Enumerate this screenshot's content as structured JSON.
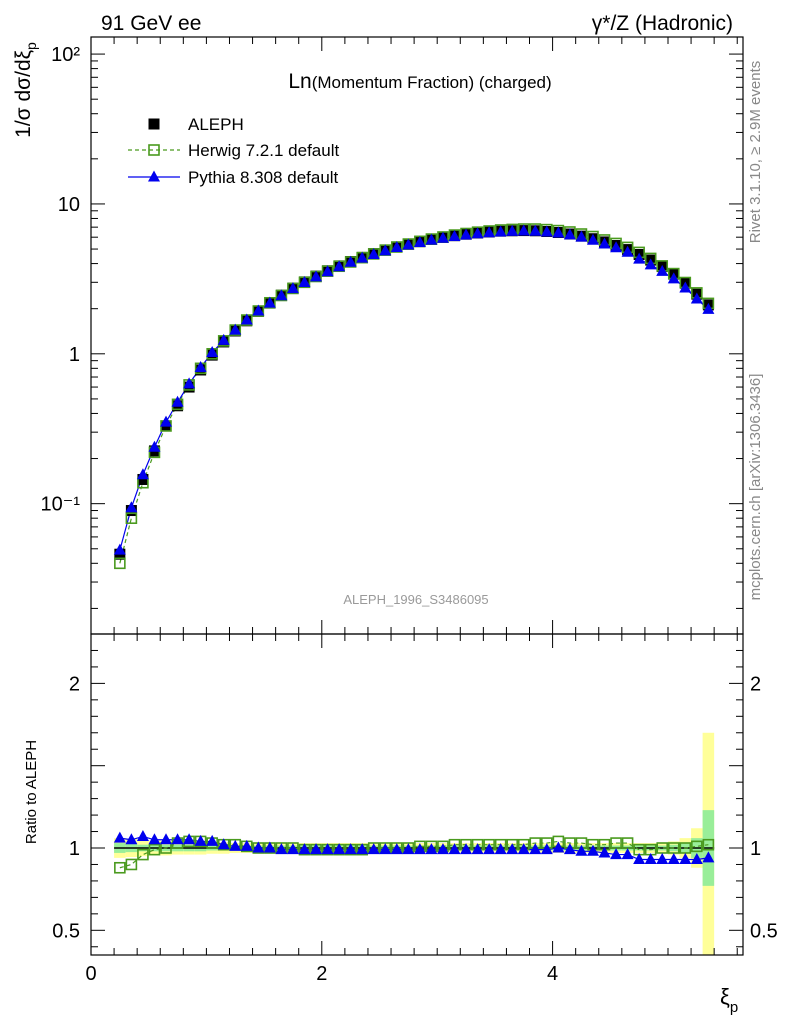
{
  "header": {
    "left_label": "91 GeV ee",
    "right_label": "γ*/Z (Hadronic)"
  },
  "side_labels": {
    "rivet": "Rivet 3.1.10, ≥ 2.9M events",
    "mcplots": "mcplots.cern.ch [arXiv:1306.3436]"
  },
  "chart_data": [
    {
      "type": "line",
      "panel": "main",
      "title_prefix": "Ln",
      "title_rest": "(Momentum Fraction) (charged)",
      "analysis_id": "ALEPH_1996_S3486095",
      "ylabel": "1/σ dσ/dξ",
      "ylabel_subscript": "p",
      "yscale": "log",
      "xlim": [
        0,
        5.65
      ],
      "ylim": [
        0.0135,
        130
      ],
      "ytick_labels": [
        "10⁻¹",
        "1",
        "10",
        "10²"
      ],
      "legend_position": "top-left",
      "x": [
        0.25,
        0.35,
        0.45,
        0.55,
        0.65,
        0.75,
        0.85,
        0.95,
        1.05,
        1.15,
        1.25,
        1.35,
        1.45,
        1.55,
        1.65,
        1.75,
        1.85,
        1.95,
        2.05,
        2.15,
        2.25,
        2.35,
        2.45,
        2.55,
        2.65,
        2.75,
        2.85,
        2.95,
        3.05,
        3.15,
        3.25,
        3.35,
        3.45,
        3.55,
        3.65,
        3.75,
        3.85,
        3.95,
        4.05,
        4.15,
        4.25,
        4.35,
        4.45,
        4.55,
        4.65,
        4.75,
        4.85,
        4.95,
        5.05,
        5.15,
        5.25,
        5.35
      ],
      "series": [
        {
          "name": "ALEPH",
          "marker": "square-filled",
          "color": "#000000",
          "values": [
            0.046,
            0.09,
            0.145,
            0.225,
            0.33,
            0.45,
            0.6,
            0.78,
            0.98,
            1.2,
            1.42,
            1.66,
            1.92,
            2.18,
            2.46,
            2.74,
            3.02,
            3.3,
            3.58,
            3.86,
            4.13,
            4.4,
            4.66,
            4.92,
            5.16,
            5.38,
            5.6,
            5.8,
            5.98,
            6.14,
            6.28,
            6.4,
            6.5,
            6.58,
            6.62,
            6.64,
            6.62,
            6.55,
            6.45,
            6.3,
            6.1,
            5.86,
            5.58,
            5.28,
            4.96,
            4.6,
            4.22,
            3.82,
            3.4,
            2.96,
            2.5,
            2.12
          ]
        },
        {
          "name": "Herwig 7.2.1 default",
          "marker": "square-open",
          "color": "#4a9a1e",
          "dashed": true,
          "values": [
            0.04,
            0.08,
            0.138,
            0.22,
            0.33,
            0.46,
            0.62,
            0.8,
            1.0,
            1.22,
            1.44,
            1.68,
            1.93,
            2.19,
            2.45,
            2.73,
            3.0,
            3.28,
            3.56,
            3.84,
            4.1,
            4.38,
            4.64,
            4.92,
            5.16,
            5.4,
            5.63,
            5.83,
            6.02,
            6.2,
            6.35,
            6.48,
            6.6,
            6.7,
            6.76,
            6.8,
            6.8,
            6.74,
            6.64,
            6.5,
            6.3,
            6.06,
            5.75,
            5.45,
            5.13,
            4.75,
            4.33,
            3.86,
            3.43,
            2.99,
            2.55,
            2.17
          ]
        },
        {
          "name": "Pythia 8.308 default",
          "marker": "triangle-filled",
          "color": "#0000ee",
          "values": [
            0.049,
            0.094,
            0.156,
            0.238,
            0.35,
            0.475,
            0.63,
            0.81,
            1.02,
            1.23,
            1.44,
            1.68,
            1.93,
            2.18,
            2.44,
            2.72,
            2.99,
            3.26,
            3.53,
            3.81,
            4.08,
            4.35,
            4.6,
            4.86,
            5.12,
            5.32,
            5.53,
            5.73,
            5.9,
            6.06,
            6.2,
            6.32,
            6.42,
            6.5,
            6.56,
            6.6,
            6.57,
            6.5,
            6.4,
            6.22,
            6.0,
            5.72,
            5.4,
            5.1,
            4.76,
            4.28,
            3.92,
            3.55,
            3.16,
            2.75,
            2.32,
            1.98
          ]
        }
      ]
    },
    {
      "type": "line",
      "panel": "ratio",
      "ylabel": "Ratio to ALEPH",
      "xlabel": "ξ",
      "xlabel_subscript": "p",
      "xlim": [
        0,
        5.65
      ],
      "ylim": [
        0.35,
        2.3
      ],
      "xtick_labels": [
        "0",
        "2",
        "4"
      ],
      "ytick_labels": [
        "0.5",
        "1",
        "2"
      ],
      "x": [
        0.25,
        0.35,
        0.45,
        0.55,
        0.65,
        0.75,
        0.85,
        0.95,
        1.05,
        1.15,
        1.25,
        1.35,
        1.45,
        1.55,
        1.65,
        1.75,
        1.85,
        1.95,
        2.05,
        2.15,
        2.25,
        2.35,
        2.45,
        2.55,
        2.65,
        2.75,
        2.85,
        2.95,
        3.05,
        3.15,
        3.25,
        3.35,
        3.45,
        3.55,
        3.65,
        3.75,
        3.85,
        3.95,
        4.05,
        4.15,
        4.25,
        4.35,
        4.45,
        4.55,
        4.65,
        4.75,
        4.85,
        4.95,
        5.05,
        5.15,
        5.25,
        5.35
      ],
      "band_stat": [
        0.03,
        0.025,
        0.02,
        0.02,
        0.02,
        0.02,
        0.02,
        0.02,
        0.015,
        0.015,
        0.015,
        0.015,
        0.015,
        0.015,
        0.015,
        0.015,
        0.015,
        0.015,
        0.015,
        0.015,
        0.015,
        0.015,
        0.015,
        0.015,
        0.015,
        0.015,
        0.015,
        0.015,
        0.015,
        0.015,
        0.015,
        0.015,
        0.015,
        0.015,
        0.015,
        0.015,
        0.015,
        0.015,
        0.015,
        0.015,
        0.015,
        0.015,
        0.015,
        0.015,
        0.015,
        0.015,
        0.015,
        0.015,
        0.02,
        0.03,
        0.06,
        0.23
      ],
      "band_total": [
        0.06,
        0.055,
        0.05,
        0.045,
        0.045,
        0.04,
        0.04,
        0.04,
        0.035,
        0.035,
        0.03,
        0.03,
        0.03,
        0.03,
        0.03,
        0.03,
        0.03,
        0.03,
        0.03,
        0.03,
        0.03,
        0.03,
        0.03,
        0.03,
        0.03,
        0.03,
        0.03,
        0.03,
        0.03,
        0.03,
        0.03,
        0.03,
        0.03,
        0.03,
        0.03,
        0.03,
        0.03,
        0.03,
        0.03,
        0.03,
        0.03,
        0.03,
        0.03,
        0.03,
        0.03,
        0.03,
        0.03,
        0.03,
        0.04,
        0.06,
        0.12,
        0.7
      ],
      "series": [
        {
          "name": "Herwig 7.2.1 default",
          "marker": "square-open",
          "color": "#4a9a1e",
          "dashed": true,
          "values": [
            0.88,
            0.9,
            0.96,
            0.99,
            1.0,
            1.03,
            1.04,
            1.04,
            1.03,
            1.02,
            1.02,
            1.01,
            1.0,
            1.0,
            1.0,
            1.0,
            0.99,
            0.99,
            0.99,
            0.99,
            0.99,
            0.99,
            1.0,
            1.0,
            1.0,
            1.0,
            1.01,
            1.01,
            1.01,
            1.02,
            1.02,
            1.02,
            1.02,
            1.02,
            1.02,
            1.02,
            1.03,
            1.03,
            1.04,
            1.03,
            1.03,
            1.02,
            1.02,
            1.03,
            1.03,
            0.99,
            0.99,
            1.0,
            1.0,
            1.0,
            1.01,
            1.02
          ]
        },
        {
          "name": "Pythia 8.308 default",
          "marker": "triangle-filled",
          "color": "#0000ee",
          "values": [
            1.06,
            1.05,
            1.07,
            1.05,
            1.05,
            1.05,
            1.05,
            1.04,
            1.04,
            1.02,
            1.01,
            1.01,
            1.0,
            1.0,
            0.99,
            0.99,
            0.99,
            0.99,
            0.99,
            0.99,
            0.99,
            0.99,
            0.99,
            0.99,
            0.99,
            0.99,
            0.99,
            0.99,
            0.99,
            0.99,
            0.99,
            0.99,
            0.99,
            0.99,
            0.99,
            0.99,
            0.99,
            0.99,
            1.0,
            0.99,
            0.98,
            0.98,
            0.97,
            0.96,
            0.96,
            0.93,
            0.93,
            0.93,
            0.93,
            0.93,
            0.93,
            0.94
          ]
        }
      ]
    }
  ]
}
